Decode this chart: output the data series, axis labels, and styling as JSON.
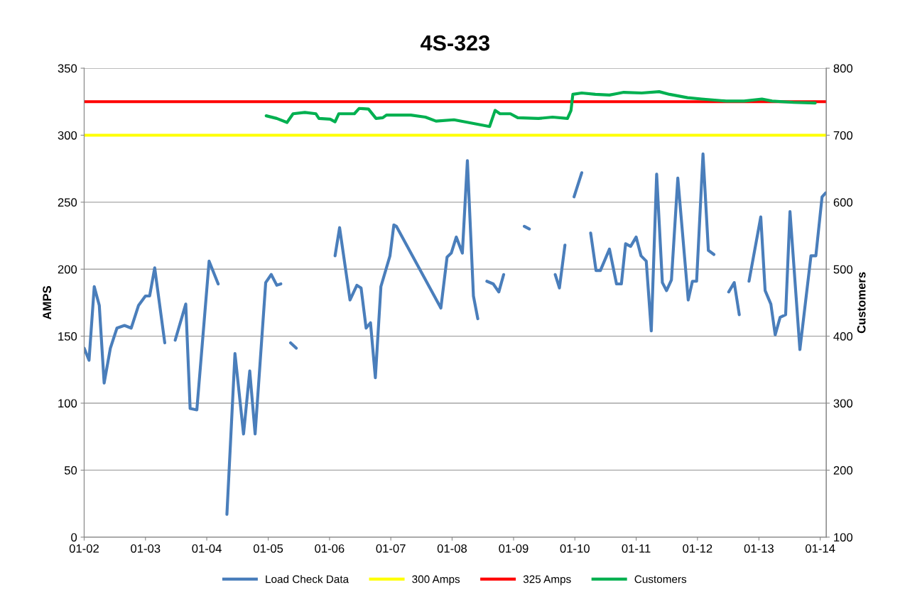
{
  "chart_data": {
    "type": "line",
    "title": "4S-323",
    "ylabel": "AMPS",
    "y2label": "Customers",
    "xlim": [
      "2002-01-01",
      "2014-02-06"
    ],
    "xticks": [
      {
        "value": "2002-01-01",
        "label": "01-02"
      },
      {
        "value": "2003-01-01",
        "label": "01-03"
      },
      {
        "value": "2004-01-01",
        "label": "01-04"
      },
      {
        "value": "2005-01-01",
        "label": "01-05"
      },
      {
        "value": "2006-01-01",
        "label": "01-06"
      },
      {
        "value": "2007-01-01",
        "label": "01-07"
      },
      {
        "value": "2008-01-01",
        "label": "01-08"
      },
      {
        "value": "2009-01-01",
        "label": "01-09"
      },
      {
        "value": "2010-01-01",
        "label": "01-10"
      },
      {
        "value": "2011-01-01",
        "label": "01-11"
      },
      {
        "value": "2012-01-01",
        "label": "01-12"
      },
      {
        "value": "2013-01-01",
        "label": "01-13"
      },
      {
        "value": "2014-01-01",
        "label": "01-14"
      }
    ],
    "ylim": [
      0,
      350
    ],
    "yticks": [
      0,
      50,
      100,
      150,
      200,
      250,
      300,
      350
    ],
    "y2lim": [
      100,
      800
    ],
    "y2ticks": [
      100,
      200,
      300,
      400,
      500,
      600,
      700,
      800
    ],
    "grid": "y",
    "legend": "bottom",
    "line_style": "solid",
    "marker": "none",
    "series": [
      {
        "name": "Load Check Data",
        "color": "#4a7ebb",
        "x": [
          "2002-01-01",
          "2002-01-30",
          "2002-03-02",
          "2002-04-01",
          "2002-04-30",
          "2002-06-06",
          "2002-07-15",
          "2002-08-29",
          "2002-10-08",
          "2002-11-21",
          "2003-01-01",
          "2003-01-26",
          "2003-02-25",
          "2003-04-26",
          "2003-05-25",
          "2003-06-27",
          "2003-08-29",
          "2003-09-24",
          "2003-11-03",
          "2004-01-15",
          "2004-03-09",
          "2004-04-05",
          "2004-04-30",
          "2004-06-17",
          "2004-08-07",
          "2004-09-13",
          "2004-10-15",
          "2004-12-17",
          "2005-01-19",
          "2005-02-21",
          "2005-03-17",
          "2005-04-15",
          "2005-05-14",
          "2005-06-17",
          "2005-10-19",
          "2006-02-03",
          "2006-03-02",
          "2006-05-03",
          "2006-06-13",
          "2006-07-08",
          "2006-08-07",
          "2006-09-02",
          "2006-10-01",
          "2006-11-03",
          "2006-12-27",
          "2007-01-19",
          "2007-02-03",
          "2007-10-26",
          "2007-12-02",
          "2007-12-27",
          "2008-01-26",
          "2008-03-02",
          "2008-04-01",
          "2008-05-07",
          "2008-06-02",
          "2008-07-01",
          "2008-07-26",
          "2008-09-02",
          "2008-10-05",
          "2008-11-03",
          "2009-01-01",
          "2009-03-06",
          "2009-04-05",
          "2009-06-13",
          "2009-09-06",
          "2009-10-01",
          "2009-11-03",
          "2009-12-02",
          "2009-12-27",
          "2010-02-11",
          "2010-03-09",
          "2010-04-05",
          "2010-05-07",
          "2010-06-02",
          "2010-07-26",
          "2010-09-06",
          "2010-10-05",
          "2010-10-30",
          "2010-11-29",
          "2011-01-01",
          "2011-01-30",
          "2011-03-02",
          "2011-04-01",
          "2011-05-03",
          "2011-06-06",
          "2011-07-01",
          "2011-07-30",
          "2011-09-06",
          "2011-11-07",
          "2011-12-02",
          "2011-12-27",
          "2012-02-03",
          "2012-03-06",
          "2012-04-08",
          "2012-05-25",
          "2012-07-05",
          "2012-08-07",
          "2012-09-06",
          "2012-10-05",
          "2012-11-03",
          "2013-01-12",
          "2013-02-07",
          "2013-03-13",
          "2013-04-08",
          "2013-05-07",
          "2013-06-09",
          "2013-07-05",
          "2013-09-02",
          "2013-11-07",
          "2013-12-06",
          "2014-01-12",
          "2014-02-03"
        ],
        "values": [
          141,
          132,
          187,
          173,
          115,
          141,
          156,
          158,
          156,
          173,
          180,
          180,
          201,
          145,
          null,
          147,
          174,
          96,
          95,
          206,
          189,
          null,
          17,
          137,
          77,
          124,
          77,
          190,
          196,
          188,
          189,
          null,
          145,
          141,
          null,
          210,
          231,
          177,
          188,
          186,
          156,
          160,
          119,
          187,
          210,
          233,
          232,
          171,
          209,
          212,
          224,
          212,
          281,
          180,
          163,
          null,
          191,
          189,
          183,
          196,
          null,
          232,
          230,
          null,
          196,
          186,
          218,
          null,
          254,
          272,
          null,
          227,
          199,
          199,
          215,
          189,
          189,
          219,
          217,
          224,
          210,
          206,
          154,
          271,
          190,
          184,
          192,
          268,
          177,
          191,
          191,
          286,
          214,
          211,
          null,
          183,
          190,
          166,
          null,
          191,
          239,
          184,
          174,
          151,
          164,
          166,
          243,
          140,
          210,
          210,
          254,
          257
        ]
      },
      {
        "name": "300 Amps",
        "color": "#ffff00",
        "x": [
          "2002-01-01",
          "2014-02-06"
        ],
        "values": [
          300,
          300
        ]
      },
      {
        "name": "325 Amps",
        "color": "#ff0000",
        "x": [
          "2002-01-01",
          "2014-02-06"
        ],
        "values": [
          325,
          325
        ]
      },
      {
        "name": "Customers",
        "color": "#00b050",
        "axis": "y2",
        "x": [
          "2004-12-20",
          "2005-02-21",
          "2005-04-23",
          "2005-05-29",
          "2005-08-07",
          "2005-10-12",
          "2005-10-30",
          "2006-01-05",
          "2006-02-03",
          "2006-02-25",
          "2006-05-29",
          "2006-06-27",
          "2006-08-21",
          "2006-10-05",
          "2006-11-14",
          "2006-12-06",
          "2007-04-30",
          "2007-07-26",
          "2007-09-27",
          "2008-01-12",
          "2008-04-05",
          "2008-08-11",
          "2008-09-13",
          "2008-10-12",
          "2008-12-13",
          "2009-01-26",
          "2009-05-29",
          "2009-08-21",
          "2009-11-18",
          "2009-12-09",
          "2009-12-20",
          "2010-02-11",
          "2010-05-03",
          "2010-07-26",
          "2010-09-06",
          "2010-10-19",
          "2011-02-03",
          "2011-05-18",
          "2011-07-19",
          "2011-11-03",
          "2012-01-26",
          "2012-06-20",
          "2012-10-05",
          "2013-01-19",
          "2013-03-20",
          "2013-07-26",
          "2013-12-02"
        ],
        "values": [
          729,
          725,
          719,
          732,
          734,
          732,
          725,
          724,
          720,
          732,
          732,
          740,
          739,
          725,
          726,
          730,
          730,
          727,
          721,
          723,
          719,
          713,
          737,
          732,
          732,
          726,
          725,
          727,
          725,
          737,
          761,
          763,
          761,
          760,
          762,
          764,
          763,
          765,
          761,
          756,
          754,
          751,
          751,
          754,
          751,
          749,
          748
        ]
      }
    ]
  }
}
